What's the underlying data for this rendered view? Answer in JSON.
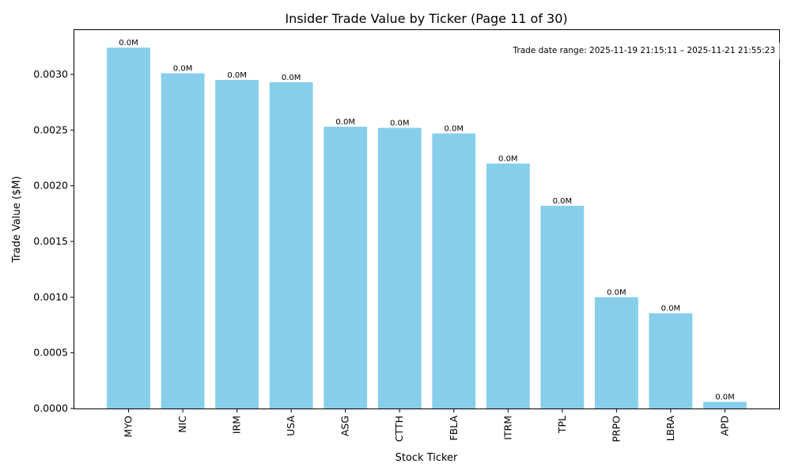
{
  "chart_data": {
    "type": "bar",
    "title": "Insider Trade Value by Ticker (Page 11 of 30)",
    "xlabel": "Stock Ticker",
    "ylabel": "Trade Value ($M)",
    "annotation": "Trade date range: 2025-11-19 21:15:11 – 2025-11-21 21:55:23",
    "categories": [
      "MYO",
      "NIC",
      "IRM",
      "USA",
      "ASG",
      "CTTH",
      "FBLA",
      "ITRM",
      "TPL",
      "PRPO",
      "LBRA",
      "APD"
    ],
    "values": [
      0.00324,
      0.00301,
      0.00295,
      0.00293,
      0.00253,
      0.00252,
      0.00247,
      0.0022,
      0.00182,
      0.001,
      0.000855,
      6e-05
    ],
    "data_labels": [
      "0.0M",
      "0.0M",
      "0.0M",
      "0.0M",
      "0.0M",
      "0.0M",
      "0.0M",
      "0.0M",
      "0.0M",
      "0.0M",
      "0.0M",
      "0.0M"
    ],
    "ylim": [
      0,
      0.003398
    ],
    "yticks": [
      0,
      0.0005,
      0.001,
      0.0015,
      0.002,
      0.0025,
      0.003
    ],
    "ytick_labels": [
      "0.0000",
      "0.0005",
      "0.0010",
      "0.0015",
      "0.0020",
      "0.0025",
      "0.0030"
    ],
    "bar_color": "#87ceeb",
    "grid": false
  }
}
